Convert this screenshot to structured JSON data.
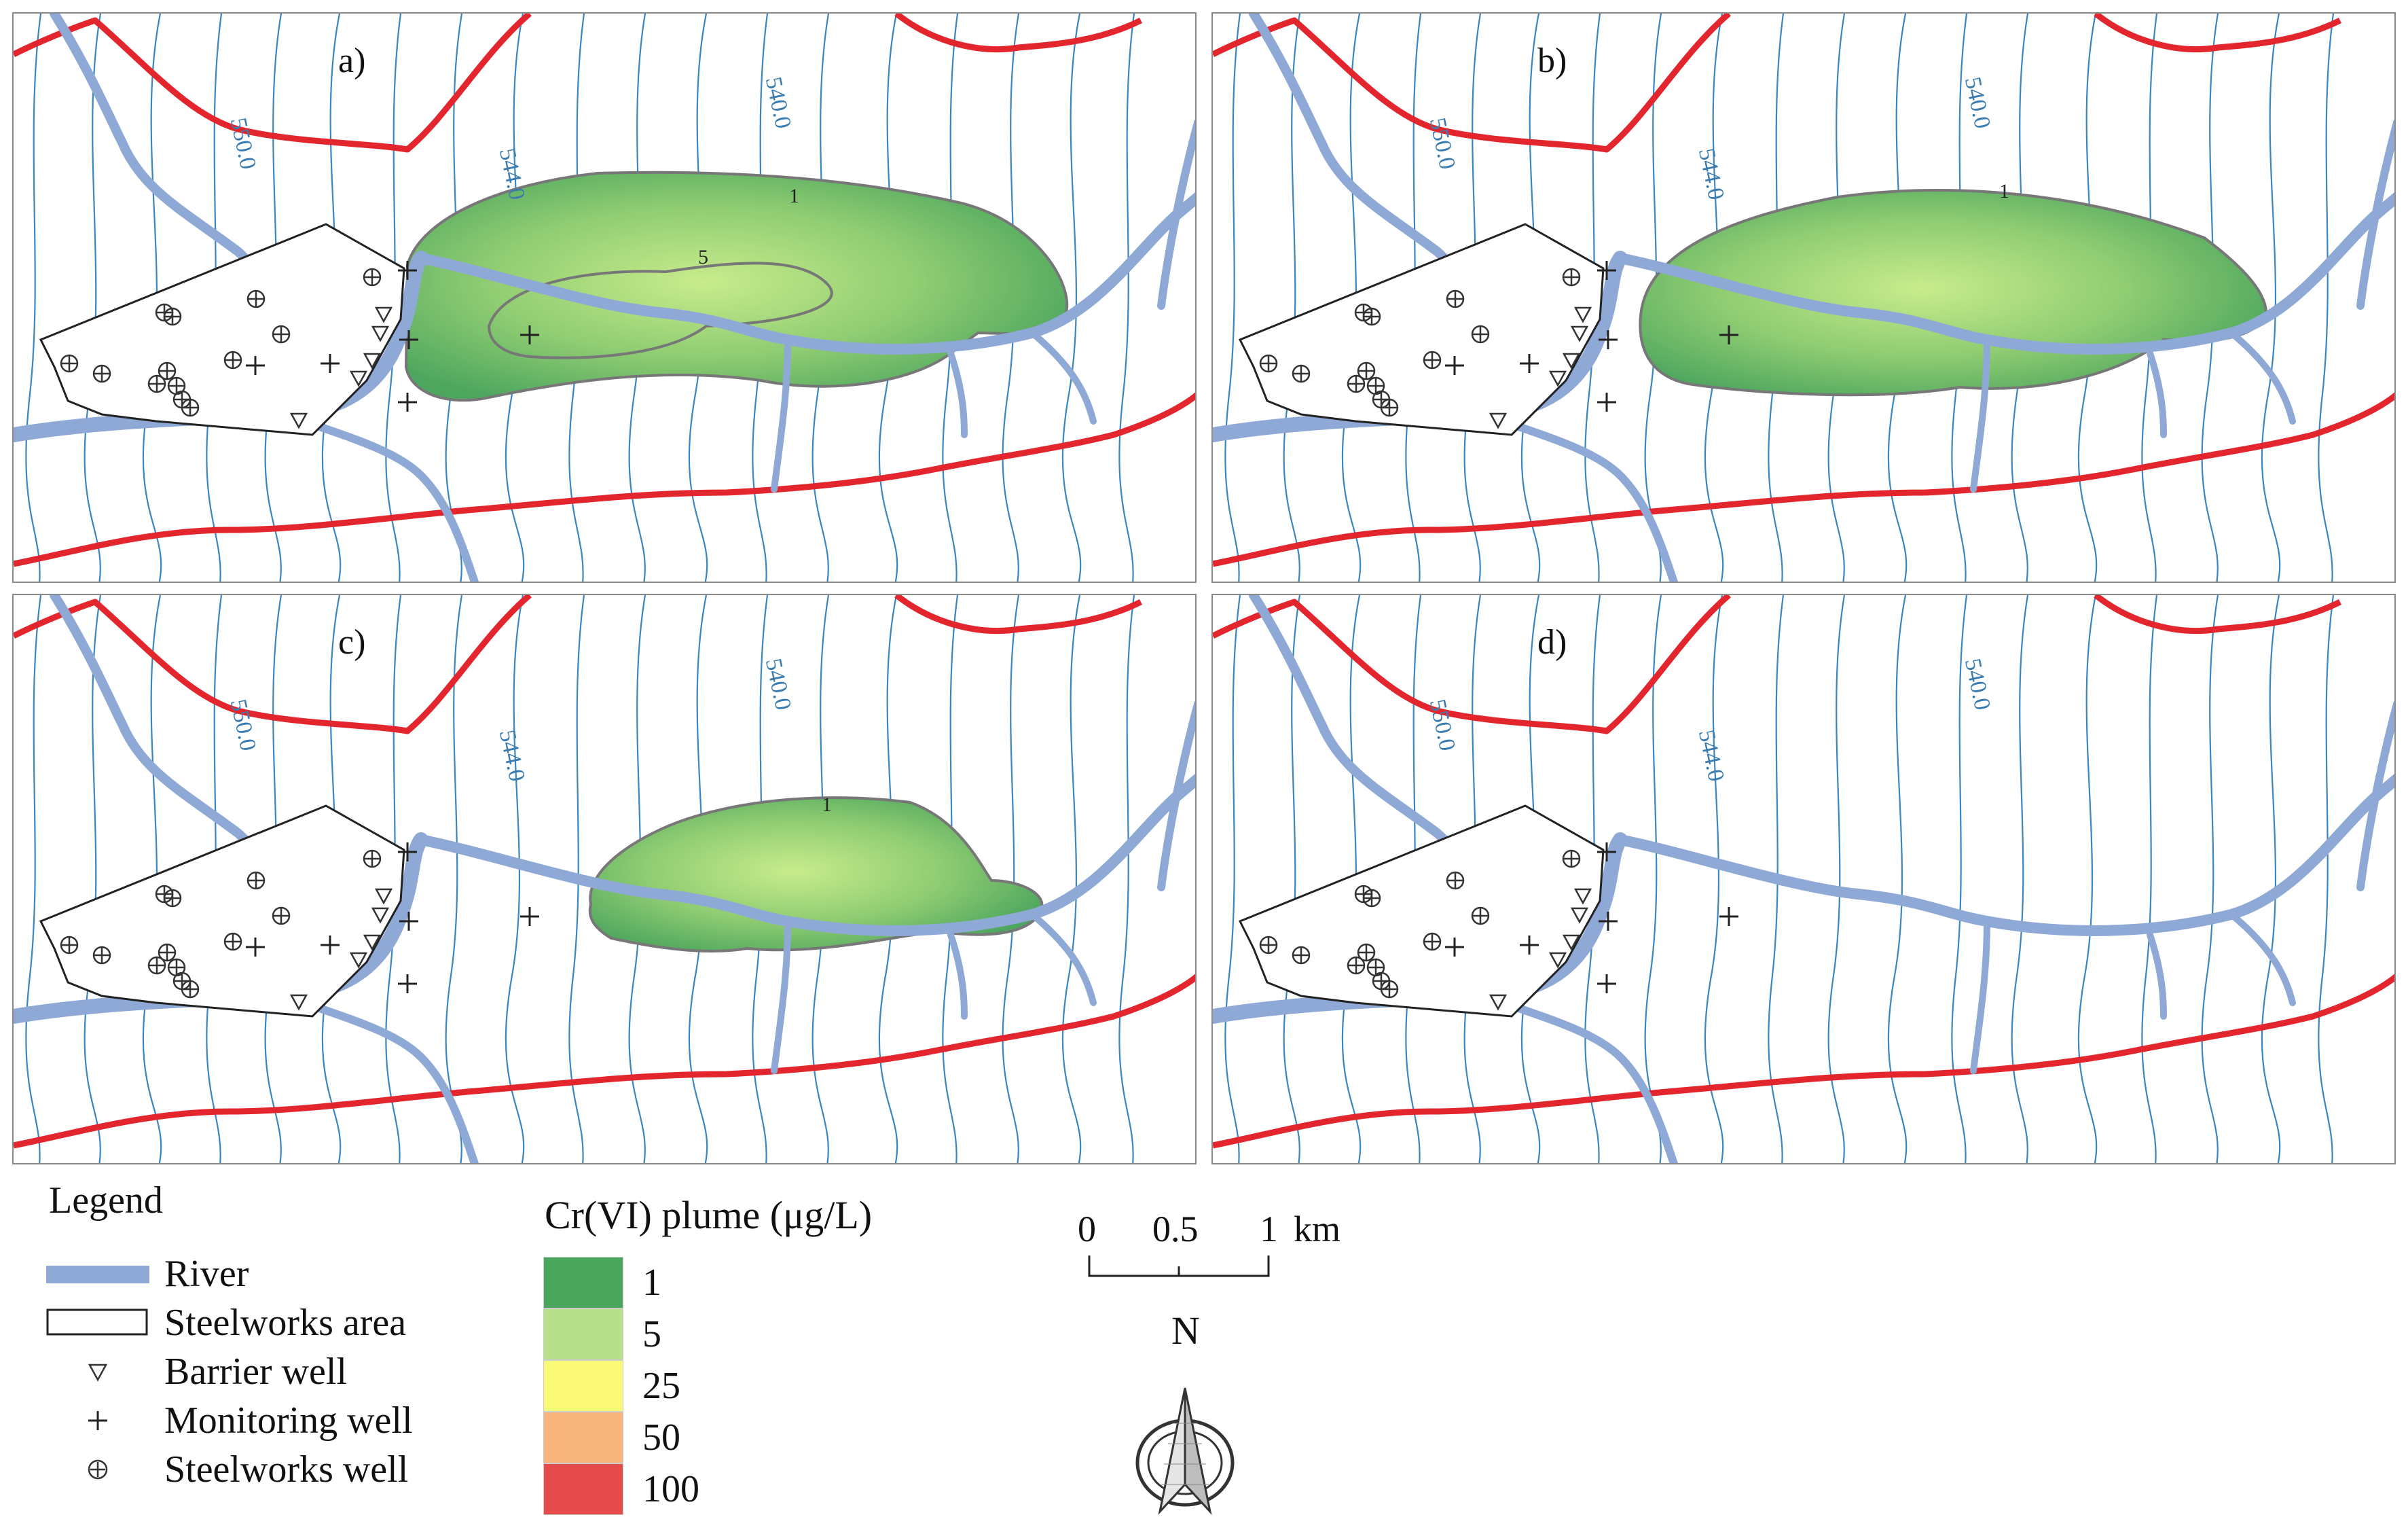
{
  "map": {
    "panels": [
      {
        "letter": "a)",
        "plume": "large",
        "plume_labels": {
          "outer": "1",
          "inner": "5"
        }
      },
      {
        "letter": "b)",
        "plume": "medium",
        "plume_labels": {
          "outer": "1"
        }
      },
      {
        "letter": "c)",
        "plume": "small",
        "plume_labels": {
          "outer": "1"
        }
      },
      {
        "letter": "d)",
        "plume": "none",
        "plume_labels": {}
      }
    ],
    "contour_labels": [
      "550.0",
      "544.0",
      "540.0"
    ]
  },
  "legend": {
    "title": "Legend",
    "items": [
      {
        "label": "River",
        "icon": "river-line-icon"
      },
      {
        "label": "Steelworks area",
        "icon": "area-rectangle-icon"
      },
      {
        "label": "Barrier well",
        "icon": "triangle-down-icon"
      },
      {
        "label": "Monitoring well",
        "icon": "plus-icon"
      },
      {
        "label": "Steelworks well",
        "icon": "circled-plus-icon"
      }
    ]
  },
  "plume_scale": {
    "title": "Cr(VI) plume (μg/L)",
    "classes": [
      {
        "label": "1",
        "color": "#4aa65c"
      },
      {
        "label": "5",
        "color": "#b8e08a"
      },
      {
        "label": "25",
        "color": "#fafa78"
      },
      {
        "label": "50",
        "color": "#f7b47c"
      },
      {
        "label": "100",
        "color": "#e54b4b"
      }
    ]
  },
  "scale_bar": {
    "labels": [
      "0",
      "0.5",
      "1"
    ],
    "unit": "km"
  },
  "north_arrow": {
    "label": "N",
    "icon": "north-arrow-icon"
  },
  "colors": {
    "river": "#8fa9d6",
    "boundary": "#e3262d",
    "contour": "#3a86c0",
    "area_outline": "#222222"
  }
}
